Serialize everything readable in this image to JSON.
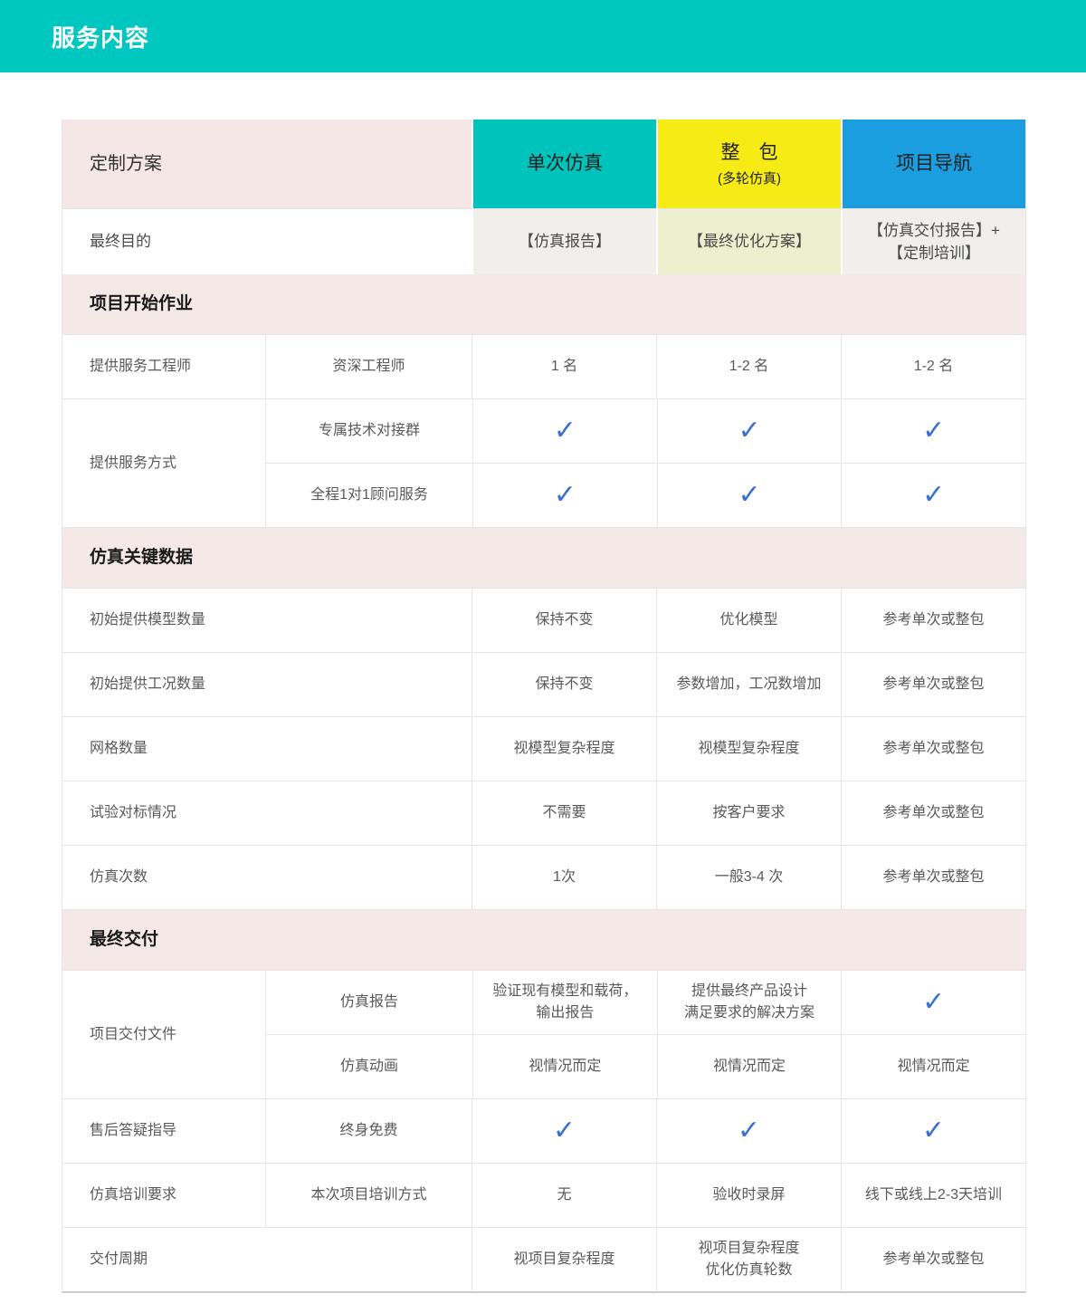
{
  "page_title": "服务内容",
  "theme": {
    "banner_bg": "#00C8C1",
    "column_teal": "#00C3BC",
    "column_yellow": "#F6EB15",
    "column_blue": "#1B9EE0",
    "section_pink": "#F5E9E8",
    "cell_gray": "#F0EFEC",
    "cell_lime": "#EDF0CF",
    "check_color": "#3B70D3"
  },
  "table": {
    "corner_label": "定制方案",
    "columns": [
      {
        "title": "单次仿真",
        "subtitle": ""
      },
      {
        "title": "整　包",
        "subtitle": "(多轮仿真)"
      },
      {
        "title": "项目导航",
        "subtitle": ""
      }
    ],
    "purpose_row": {
      "label": "最终目的",
      "values": [
        "【仿真报告】",
        "【最终优化方案】",
        "【仿真交付报告】+\n【定制培训】"
      ]
    },
    "sections": [
      {
        "title": "项目开始作业",
        "rows": [
          {
            "label": "提供服务工程师",
            "sublabel": "资深工程师",
            "values": [
              "1 名",
              "1-2 名",
              "1-2 名"
            ]
          },
          {
            "group_label": "提供服务方式",
            "subrows": [
              {
                "sublabel": "专属技术对接群",
                "values": [
                  "✓",
                  "✓",
                  "✓"
                ]
              },
              {
                "sublabel": "全程1对1顾问服务",
                "values": [
                  "✓",
                  "✓",
                  "✓"
                ]
              }
            ]
          }
        ]
      },
      {
        "title": "仿真关键数据",
        "rows": [
          {
            "label": "初始提供模型数量",
            "values": [
              "保持不变",
              "优化模型",
              "参考单次或整包"
            ]
          },
          {
            "label": "初始提供工况数量",
            "values": [
              "保持不变",
              "参数增加，工况数增加",
              "参考单次或整包"
            ]
          },
          {
            "label": "网格数量",
            "values": [
              "视模型复杂程度",
              "视模型复杂程度",
              "参考单次或整包"
            ]
          },
          {
            "label": "试验对标情况",
            "values": [
              "不需要",
              "按客户要求",
              "参考单次或整包"
            ]
          },
          {
            "label": "仿真次数",
            "values": [
              "1次",
              "一般3-4 次",
              "参考单次或整包"
            ]
          }
        ]
      },
      {
        "title": "最终交付",
        "rows": [
          {
            "group_label": "项目交付文件",
            "subrows": [
              {
                "sublabel": "仿真报告",
                "values": [
                  "验证现有模型和载荷，\n输出报告",
                  "提供最终产品设计\n满足要求的解决方案",
                  "✓"
                ]
              },
              {
                "sublabel": "仿真动画",
                "values": [
                  "视情况而定",
                  "视情况而定",
                  "视情况而定"
                ]
              }
            ]
          },
          {
            "label": "售后答疑指导",
            "sublabel": "终身免费",
            "values": [
              "✓",
              "✓",
              "✓"
            ]
          },
          {
            "label": "仿真培训要求",
            "sublabel": "本次项目培训方式",
            "values": [
              "无",
              "验收时录屏",
              "线下或线上2-3天培训"
            ]
          },
          {
            "label": "交付周期",
            "values": [
              "视项目复杂程度",
              "视项目复杂程度\n优化仿真轮数",
              "参考单次或整包"
            ]
          }
        ]
      }
    ]
  }
}
